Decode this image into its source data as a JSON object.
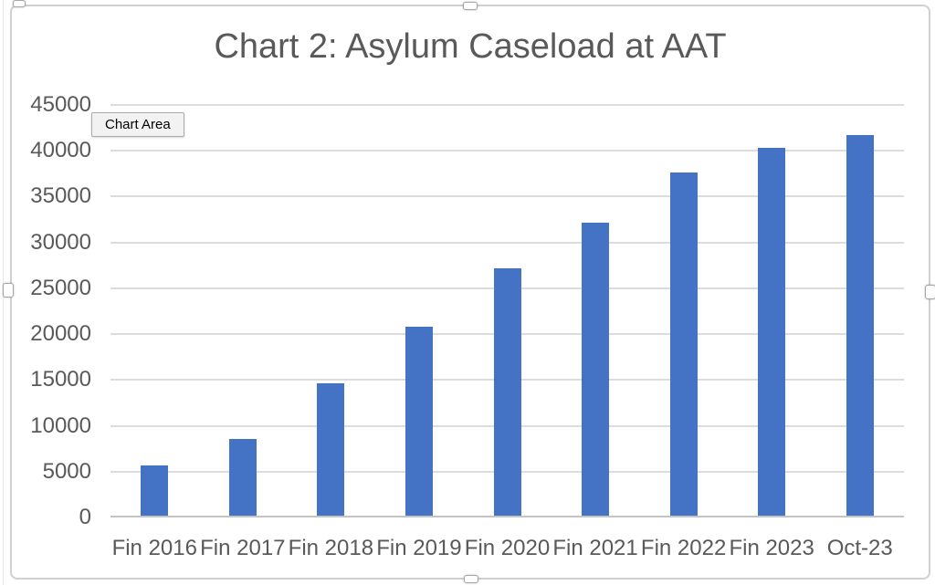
{
  "tooltip": {
    "label": "Chart Area"
  },
  "chart_data": {
    "type": "bar",
    "title": "Chart 2: Asylum Caseload at AAT",
    "categories": [
      "Fin 2016",
      "Fin 2017",
      "Fin 2018",
      "Fin 2019",
      "Fin 2020",
      "Fin 2021",
      "Fin 2022",
      "Fin 2023",
      "Oct-23"
    ],
    "values": [
      5500,
      8400,
      14400,
      20600,
      27000,
      32000,
      37400,
      40100,
      41500
    ],
    "xlabel": "",
    "ylabel": "",
    "ylim": [
      0,
      45000
    ],
    "yticks": [
      0,
      5000,
      10000,
      15000,
      20000,
      25000,
      30000,
      35000,
      40000,
      45000
    ],
    "grid": true,
    "legend": false,
    "bar_color": "#4472C4",
    "title_color": "#595959",
    "axis_label_color": "#595959",
    "gridline_color": "#DCDCDC"
  }
}
